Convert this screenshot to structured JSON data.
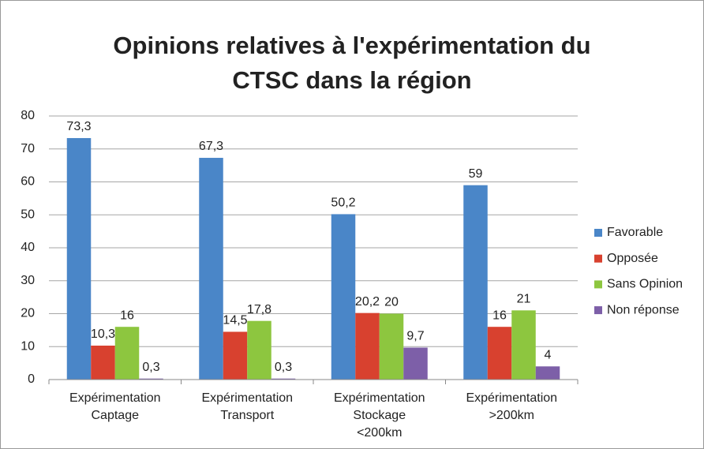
{
  "chart_data": {
    "type": "bar",
    "title": [
      "Opinions relatives à l'expérimentation du",
      "CTSC dans la région"
    ],
    "categories": [
      [
        "Expérimentation",
        "Captage"
      ],
      [
        "Expérimentation",
        "Transport"
      ],
      [
        "Expérimentation",
        "Stockage",
        "<200km"
      ],
      [
        "Expérimentation",
        ">200km"
      ]
    ],
    "series": [
      {
        "name": "Favorable",
        "color": "#4a86c8",
        "values": [
          73.3,
          67.3,
          50.2,
          59
        ],
        "value_labels": [
          "73,3",
          "67,3",
          "50,2",
          "59"
        ]
      },
      {
        "name": "Opposée",
        "color": "#d8412f",
        "values": [
          10.3,
          14.5,
          20.2,
          16
        ],
        "value_labels": [
          "10,3",
          "14,5",
          "20,2",
          "16"
        ]
      },
      {
        "name": "Sans Opinion",
        "color": "#8dc63f",
        "values": [
          16,
          17.8,
          20,
          21
        ],
        "value_labels": [
          "16",
          "17,8",
          "20",
          "21"
        ]
      },
      {
        "name": "Non réponse",
        "color": "#7d5fa8",
        "values": [
          0.3,
          0.3,
          9.7,
          4
        ],
        "value_labels": [
          "0,3",
          "0,3",
          "9,7",
          "4"
        ]
      }
    ],
    "ylim": [
      0,
      80
    ],
    "yticks": [
      0,
      10,
      20,
      30,
      40,
      50,
      60,
      70,
      80
    ],
    "grid": true,
    "legend": "right"
  }
}
